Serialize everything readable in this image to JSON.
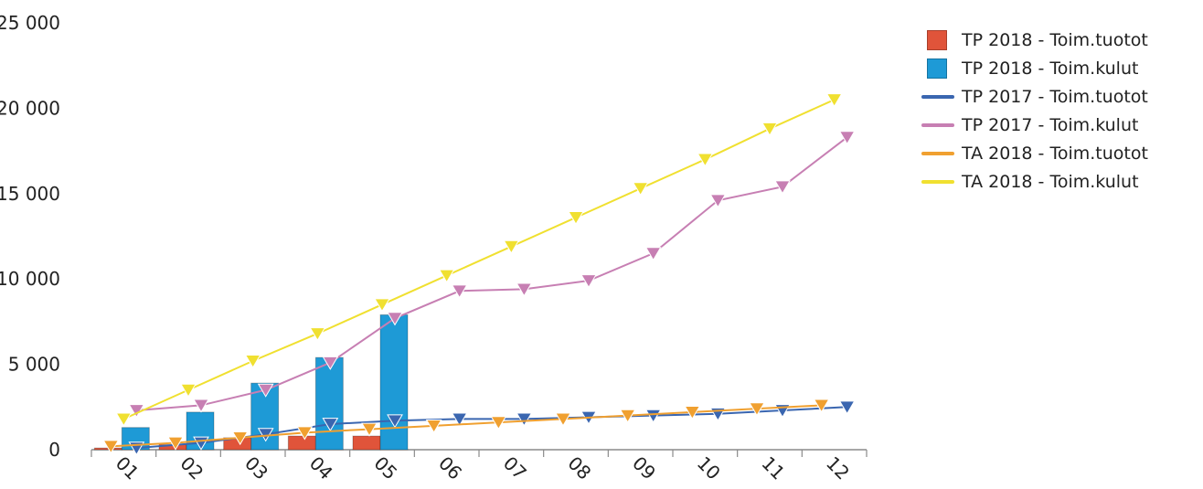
{
  "chart_data": {
    "type": "bar",
    "categories": [
      "01",
      "02",
      "03",
      "04",
      "05",
      "06",
      "07",
      "08",
      "09",
      "10",
      "11",
      "12"
    ],
    "ylim": [
      0,
      25000
    ],
    "yticks": [
      0,
      5000,
      10000,
      15000,
      20000,
      25000
    ],
    "ytick_labels": [
      "0",
      "5 000",
      "10 000",
      "15 000",
      "20 000",
      "25 000"
    ],
    "grid": false,
    "legend_position": "right",
    "title": "",
    "xlabel": "",
    "ylabel": "",
    "series": [
      {
        "name": "TP 2018  - Toim.tuotot",
        "kind": "bar",
        "color": "#e0543a",
        "values": [
          100,
          300,
          700,
          800,
          800,
          null,
          null,
          null,
          null,
          null,
          null,
          null
        ]
      },
      {
        "name": "TP 2018  - Toim.kulut",
        "kind": "bar",
        "color": "#1e9ad6",
        "values": [
          1300,
          2200,
          3900,
          5400,
          7900,
          null,
          null,
          null,
          null,
          null,
          null,
          null
        ]
      },
      {
        "name": "TP 2017 - Toim.tuotot",
        "kind": "line",
        "color": "#3a66b0",
        "values": [
          100,
          400,
          900,
          1500,
          1700,
          1800,
          1800,
          1900,
          2000,
          2100,
          2300,
          2500
        ]
      },
      {
        "name": "TP 2017 - Toim.kulut",
        "kind": "line",
        "color": "#c77fb3",
        "values": [
          2300,
          2600,
          3500,
          5100,
          7700,
          9300,
          9400,
          9900,
          11500,
          14600,
          15400,
          18300
        ]
      },
      {
        "name": "TA 2018 - Toim.tuotot",
        "kind": "line",
        "color": "#f0a030",
        "values": [
          200,
          400,
          700,
          1000,
          1200,
          1400,
          1600,
          1800,
          2000,
          2200,
          2400,
          2600
        ]
      },
      {
        "name": "TA 2018 - Toim.kulut",
        "kind": "line",
        "color": "#f0e030",
        "values": [
          1800,
          3500,
          5200,
          6800,
          8500,
          10200,
          11900,
          13600,
          15300,
          17000,
          18800,
          20500
        ]
      }
    ]
  }
}
